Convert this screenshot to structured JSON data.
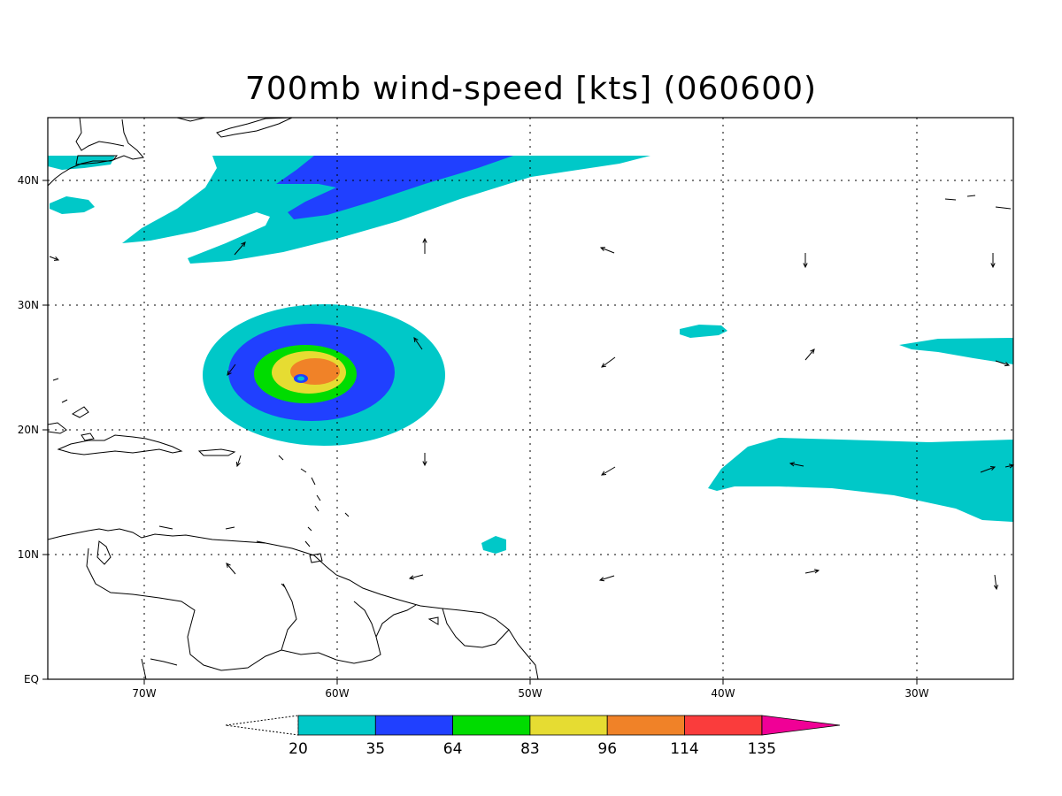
{
  "title": "700mb wind-speed [kts] (060600)",
  "map": {
    "lon_ticks": [
      "70W",
      "60W",
      "50W",
      "40W",
      "30W"
    ],
    "lat_ticks": [
      "EQ",
      "10N",
      "20N",
      "30N",
      "40N"
    ],
    "grid": "dotted"
  },
  "colorbar": {
    "levels": [
      "20",
      "35",
      "64",
      "83",
      "96",
      "114",
      "135"
    ],
    "colors": [
      "#00c8c8",
      "#2040ff",
      "#00dc00",
      "#e6dc32",
      "#f08228",
      "#fa3c3c",
      "#f00096"
    ],
    "extend_below": "open",
    "extend_above": "filled"
  }
}
